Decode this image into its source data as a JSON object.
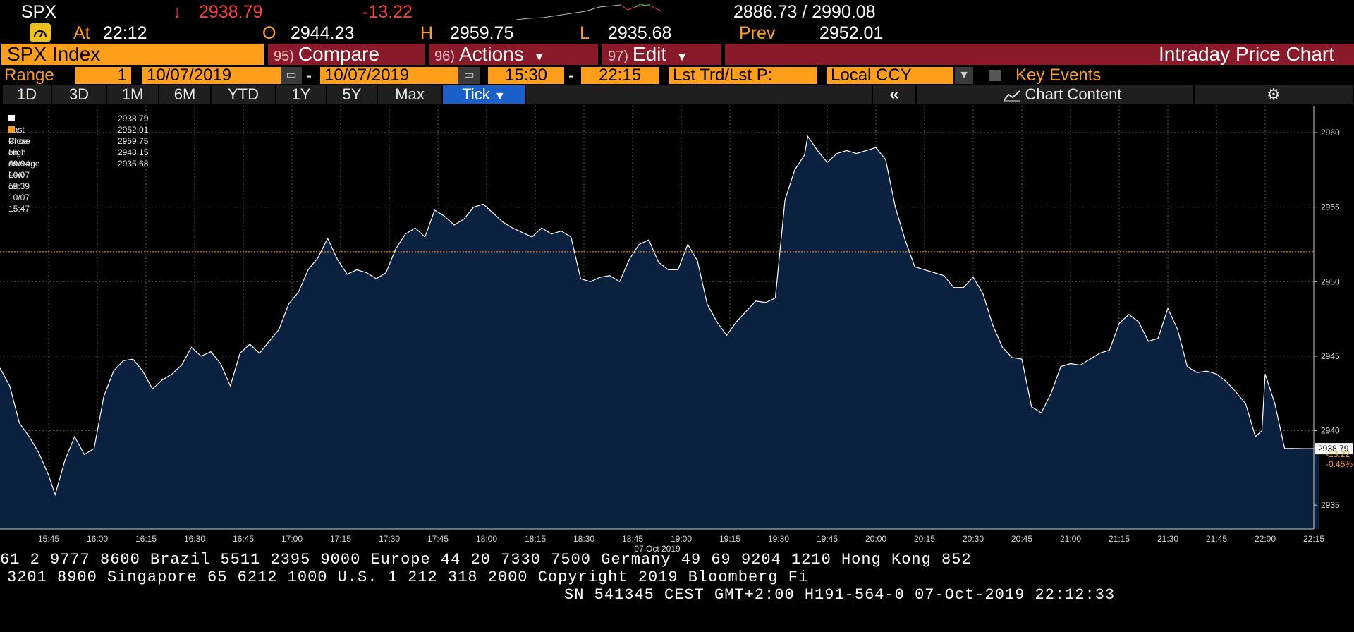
{
  "quote": {
    "ticker": "SPX",
    "arrow": "↓",
    "last": "2938.79",
    "change": "-13.22",
    "range": "2886.73 / 2990.08",
    "at_label": "At",
    "at_time": "22:12",
    "open_label": "O",
    "open": "2944.23",
    "high_label": "H",
    "high": "2959.75",
    "low_label": "L",
    "low": "2935.68",
    "prev_label": "Prev",
    "prev": "2952.01"
  },
  "function_bar": {
    "security": "SPX Index",
    "compare_num": "95)",
    "compare": "Compare",
    "actions_num": "96)",
    "actions": "Actions",
    "edit_num": "97)",
    "edit": "Edit",
    "chart_name": "Intraday Price Chart"
  },
  "range_bar": {
    "label": "Range",
    "period": "1",
    "start_date": "10/07/2019",
    "end_date": "10/07/2019",
    "start_time": "15:30",
    "end_time": "22:15",
    "dash": "-",
    "field": "Lst Trd/Lst P:",
    "currency": "Local CCY",
    "key_events": "Key Events"
  },
  "tabs": [
    "1D",
    "3D",
    "1M",
    "6M",
    "YTD",
    "1Y",
    "5Y",
    "Max",
    "Tick"
  ],
  "toolbar": {
    "chart_content": "Chart Content"
  },
  "legend": [
    {
      "label": "Last Price",
      "value": "2938.79"
    },
    {
      "label": "Close on 10/04 ----",
      "value": "2952.01"
    },
    {
      "label": "High on 10/07 19:39",
      "value": "2959.75"
    },
    {
      "label": "Average",
      "value": "2948.15"
    },
    {
      "label": "Low on 10/07 15:47",
      "value": "2935.68"
    }
  ],
  "colors": {
    "area_fill": "#0b2140",
    "line": "#ffffff",
    "prev_close_line": "#ff9e1b",
    "accent": "#ff9e1b",
    "function_red": "#8a1a2a"
  },
  "chart_data": {
    "type": "area",
    "title": "Intraday Price Chart",
    "x_date_label": "07 Oct 2019",
    "x_ticks": [
      "15:45",
      "16:00",
      "16:15",
      "16:30",
      "16:45",
      "17:00",
      "17:15",
      "17:30",
      "17:45",
      "18:00",
      "18:15",
      "18:30",
      "18:45",
      "19:00",
      "19:15",
      "19:30",
      "19:45",
      "20:00",
      "20:15",
      "20:30",
      "20:45",
      "21:00",
      "21:15",
      "21:30",
      "21:45",
      "22:00",
      "22:15"
    ],
    "y_ticks": [
      2935,
      2940,
      2945,
      2950,
      2955,
      2960
    ],
    "ylim": [
      2933.4,
      2961.8
    ],
    "x_range_minutes": [
      "15:30",
      "22:15"
    ],
    "prev_close": 2952.01,
    "last_label": "2938.79",
    "change_label": "-13.22",
    "change_pct_label": "-0.45%",
    "series": [
      {
        "name": "Last Price",
        "time": [
          "15:30",
          "15:33",
          "15:36",
          "15:39",
          "15:42",
          "15:45",
          "15:47",
          "15:50",
          "15:53",
          "15:56",
          "15:59",
          "16:02",
          "16:05",
          "16:08",
          "16:11",
          "16:14",
          "16:17",
          "16:20",
          "16:23",
          "16:26",
          "16:29",
          "16:32",
          "16:35",
          "16:38",
          "16:41",
          "16:44",
          "16:47",
          "16:50",
          "16:53",
          "16:56",
          "16:59",
          "17:02",
          "17:05",
          "17:08",
          "17:11",
          "17:14",
          "17:17",
          "17:20",
          "17:23",
          "17:26",
          "17:29",
          "17:32",
          "17:35",
          "17:38",
          "17:41",
          "17:44",
          "17:47",
          "17:50",
          "17:53",
          "17:56",
          "17:59",
          "18:02",
          "18:05",
          "18:08",
          "18:11",
          "18:14",
          "18:17",
          "18:20",
          "18:23",
          "18:26",
          "18:29",
          "18:32",
          "18:35",
          "18:38",
          "18:41",
          "18:44",
          "18:47",
          "18:50",
          "18:53",
          "18:56",
          "18:59",
          "19:02",
          "19:05",
          "19:08",
          "19:11",
          "19:14",
          "19:17",
          "19:20",
          "19:23",
          "19:26",
          "19:29",
          "19:32",
          "19:35",
          "19:38",
          "19:39",
          "19:42",
          "19:45",
          "19:48",
          "19:51",
          "19:54",
          "19:57",
          "20:00",
          "20:03",
          "20:06",
          "20:09",
          "20:12",
          "20:15",
          "20:18",
          "20:21",
          "20:24",
          "20:27",
          "20:30",
          "20:33",
          "20:36",
          "20:39",
          "20:42",
          "20:45",
          "20:48",
          "20:51",
          "20:54",
          "20:57",
          "21:00",
          "21:03",
          "21:06",
          "21:09",
          "21:12",
          "21:15",
          "21:18",
          "21:21",
          "21:24",
          "21:27",
          "21:30",
          "21:33",
          "21:36",
          "21:39",
          "21:42",
          "21:45",
          "21:48",
          "21:51",
          "21:54",
          "21:57",
          "21:59",
          "22:00",
          "22:03",
          "22:06",
          "22:09",
          "22:12"
        ],
        "values": [
          2944.2,
          2943.0,
          2940.5,
          2939.6,
          2938.5,
          2937.0,
          2935.7,
          2938.0,
          2939.6,
          2938.4,
          2938.8,
          2942.3,
          2944.0,
          2944.7,
          2944.8,
          2944.0,
          2942.8,
          2943.4,
          2943.8,
          2944.4,
          2945.6,
          2945.0,
          2945.3,
          2944.5,
          2943.0,
          2945.2,
          2945.8,
          2945.2,
          2946.0,
          2946.8,
          2948.5,
          2949.3,
          2950.8,
          2951.6,
          2952.9,
          2951.5,
          2950.5,
          2950.8,
          2950.6,
          2950.2,
          2950.6,
          2952.2,
          2953.2,
          2953.6,
          2953.0,
          2954.8,
          2954.4,
          2953.8,
          2954.2,
          2955.0,
          2955.2,
          2954.6,
          2954.0,
          2953.6,
          2953.3,
          2953.0,
          2953.6,
          2953.2,
          2953.4,
          2953.0,
          2950.2,
          2950.0,
          2950.3,
          2950.4,
          2950.0,
          2951.5,
          2952.5,
          2952.8,
          2951.3,
          2950.8,
          2950.8,
          2952.5,
          2951.4,
          2948.5,
          2947.3,
          2946.4,
          2947.3,
          2948.0,
          2948.7,
          2948.6,
          2948.9,
          2955.5,
          2957.5,
          2958.5,
          2959.75,
          2958.8,
          2958.0,
          2958.6,
          2958.8,
          2958.6,
          2958.8,
          2959.0,
          2958.2,
          2955.0,
          2952.8,
          2951.0,
          2950.8,
          2950.6,
          2950.4,
          2949.6,
          2949.6,
          2950.3,
          2949.2,
          2947.1,
          2945.6,
          2944.9,
          2944.8,
          2941.6,
          2941.2,
          2942.5,
          2944.3,
          2944.5,
          2944.4,
          2944.8,
          2945.2,
          2945.4,
          2947.2,
          2947.8,
          2947.3,
          2946.0,
          2946.2,
          2948.2,
          2946.8,
          2944.3,
          2943.9,
          2944.0,
          2943.8,
          2943.3,
          2942.6,
          2941.8,
          2939.6,
          2940.0,
          2943.8,
          2941.8,
          2938.8,
          2938.8,
          2938.79
        ]
      }
    ]
  },
  "ticker_lines": [
    "61 2 9777 8600 Brazil 5511 2395 9000 Europe 44 20 7330 7500 Germany 49 69 9204 1210 Hong Kong 852",
    "3201 8900       Singapore 65 6212 1000       U.S. 1 212 318 2000       Copyright 2019 Bloomberg Fi",
    "SN 541345 CEST GMT+2:00 H191-564-0 07-Oct-2019 22:12:33"
  ]
}
